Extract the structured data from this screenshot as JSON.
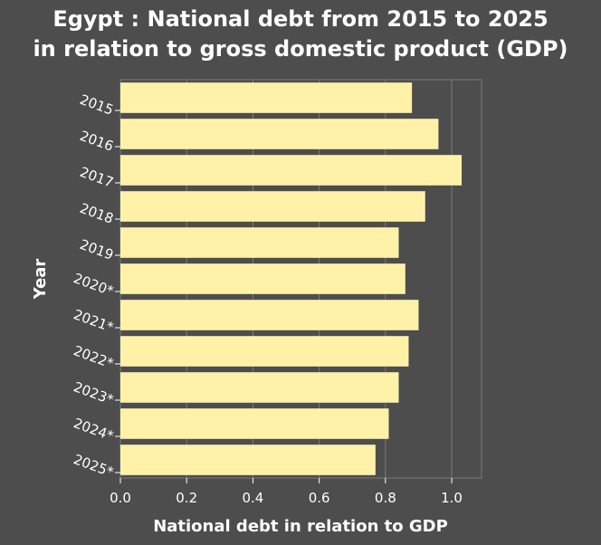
{
  "chart_data": {
    "type": "bar",
    "orientation": "horizontal",
    "title_line1": "Egypt : National debt from 2015 to 2025",
    "title_line2": "in relation to gross domestic product (GDP)",
    "xlabel": "National debt in relation to GDP",
    "ylabel": "Year",
    "categories": [
      "2015",
      "2016",
      "2017",
      "2018",
      "2019",
      "2020*",
      "2021*",
      "2022*",
      "2023*",
      "2024*",
      "2025*"
    ],
    "values": [
      0.88,
      0.96,
      1.03,
      0.92,
      0.84,
      0.86,
      0.9,
      0.87,
      0.84,
      0.81,
      0.77
    ],
    "xlim": [
      0,
      1.09
    ],
    "xticks": [
      "0.0",
      "0.2",
      "0.4",
      "0.6",
      "0.8",
      "1.0"
    ],
    "grid": true,
    "colors": {
      "background": "#4d4d4d",
      "bar": "#fff2a8",
      "grid": "#7a7a7a",
      "text": "#ffffff"
    }
  }
}
